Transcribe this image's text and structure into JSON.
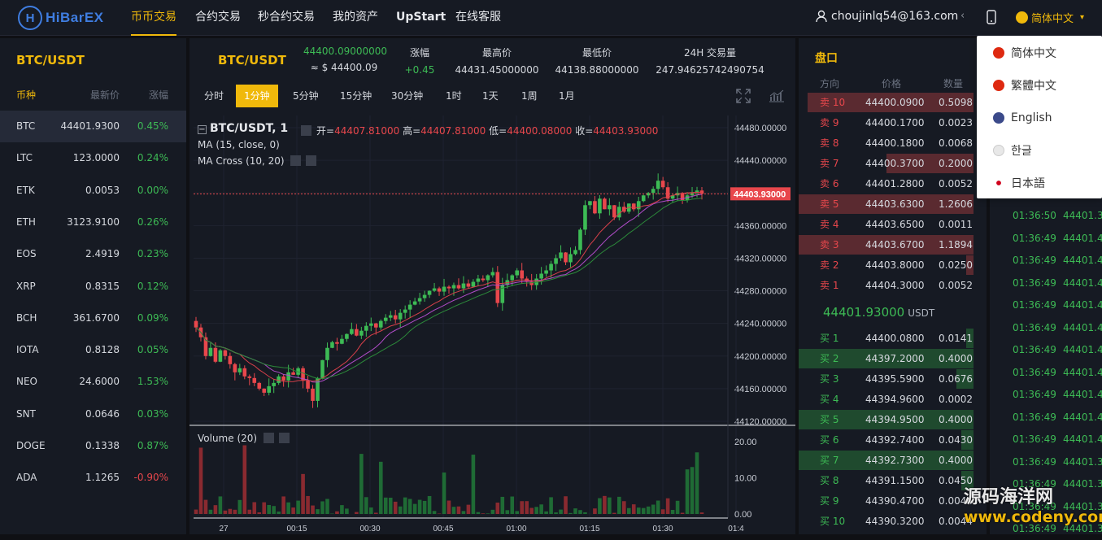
{
  "header": {
    "logo": "HiBarEX",
    "nav": [
      "币币交易",
      "合约交易",
      "秒合约交易",
      "我的资产",
      "UpStart",
      "在线客服"
    ],
    "active_nav": "币币交易",
    "user": "choujinlq54@163.com",
    "language": "简体中文"
  },
  "market": {
    "title": "BTC/USDT",
    "headers": [
      "币种",
      "最新价",
      "涨幅"
    ],
    "rows": [
      {
        "coin": "BTC",
        "price": "44401.9300",
        "change": "0.45%",
        "up": true
      },
      {
        "coin": "LTC",
        "price": "123.0000",
        "change": "0.24%",
        "up": true
      },
      {
        "coin": "ETK",
        "price": "0.0053",
        "change": "0.00%",
        "up": true
      },
      {
        "coin": "ETH",
        "price": "3123.9100",
        "change": "0.26%",
        "up": true
      },
      {
        "coin": "EOS",
        "price": "2.4919",
        "change": "0.23%",
        "up": true
      },
      {
        "coin": "XRP",
        "price": "0.8315",
        "change": "0.12%",
        "up": true
      },
      {
        "coin": "BCH",
        "price": "361.6700",
        "change": "0.09%",
        "up": true
      },
      {
        "coin": "IOTA",
        "price": "0.8128",
        "change": "0.05%",
        "up": true
      },
      {
        "coin": "NEO",
        "price": "24.6000",
        "change": "1.53%",
        "up": true
      },
      {
        "coin": "SNT",
        "price": "0.0646",
        "change": "0.03%",
        "up": true
      },
      {
        "coin": "DOGE",
        "price": "0.1338",
        "change": "0.87%",
        "up": true
      },
      {
        "coin": "ADA",
        "price": "1.1265",
        "change": "-0.90%",
        "up": false
      }
    ]
  },
  "ticker": {
    "pair": "BTC/USDT",
    "last_price": "44400.09000000",
    "last_usd": "≈ $ 44400.09",
    "change_label": "涨幅",
    "change_value": "+0.45",
    "high_label": "最高价",
    "high_value": "44431.45000000",
    "low_label": "最低价",
    "low_value": "44138.88000000",
    "vol_label": "24H 交易量",
    "vol_value": "247.94625742490754"
  },
  "periods": [
    "分时",
    "1分钟",
    "5分钟",
    "15分钟",
    "30分钟",
    "1时",
    "1天",
    "1周",
    "1月"
  ],
  "active_period": "1分钟",
  "chart": {
    "symbol": "BTC/USDT, 1",
    "open_label": "开=",
    "open": "44407.81000",
    "high_label": "高=",
    "high": "44407.81000",
    "low_label": "低=",
    "low": "44400.08000",
    "close_label": "收=",
    "close": "44403.93000",
    "ma_label": "MA (15, close, 0)",
    "macross_label": "MA Cross (10, 20)",
    "volume_label": "Volume (20)",
    "last_price_tag": "44403.93000",
    "price_ticks": [
      "44480.00000",
      "44440.00000",
      "44400.00000",
      "44360.00000",
      "44320.00000",
      "44280.00000",
      "44240.00000",
      "44200.00000",
      "44160.00000",
      "44120.00000"
    ],
    "volume_ticks": [
      "20.00",
      "10.00",
      "0.00"
    ],
    "time_ticks": [
      "27",
      "00:15",
      "00:30",
      "00:45",
      "01:00",
      "01:15",
      "01:30",
      "01:4"
    ],
    "closes": [
      44240,
      44228,
      44205,
      44215,
      44198,
      44212,
      44205,
      44195,
      44185,
      44190,
      44180,
      44178,
      44172,
      44165,
      44160,
      44168,
      44172,
      44180,
      44175,
      44185,
      44182,
      44190,
      44175,
      44165,
      44150,
      44178,
      44200,
      44215,
      44222,
      44220,
      44226,
      44232,
      44238,
      44230,
      44236,
      44242,
      44245,
      44240,
      44248,
      44252,
      44255,
      44250,
      44258,
      44262,
      44268,
      44272,
      44276,
      44280,
      44285,
      44288,
      44284,
      44290,
      44288,
      44292,
      44288,
      44294,
      44290,
      44296,
      44300,
      44298,
      44304,
      44308,
      44270,
      44292,
      44298,
      44304,
      44310,
      44300,
      44296,
      44292,
      44300,
      44306,
      44310,
      44318,
      44325,
      44332,
      44320,
      44330,
      44335,
      44360,
      44390,
      44395,
      44380,
      44398,
      44385,
      44390,
      44375,
      44388,
      44382,
      44392,
      44385,
      44395,
      44402,
      44405,
      44410,
      44420,
      44412,
      44398,
      44402,
      44405,
      44396,
      44402,
      44405,
      44408,
      44404
    ]
  }
}
